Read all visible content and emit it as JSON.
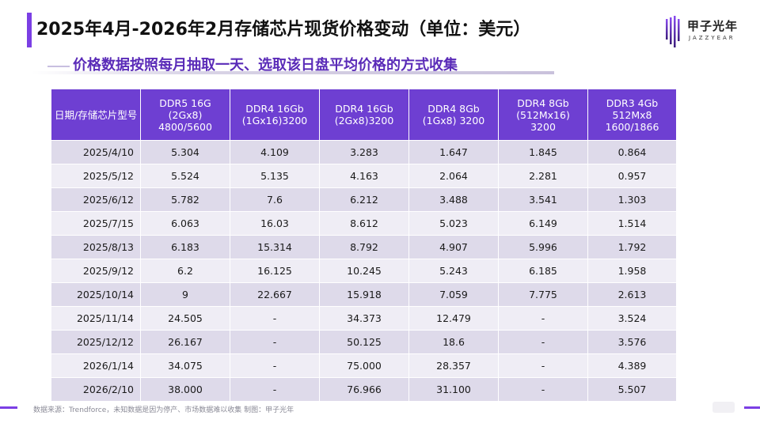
{
  "slide": {
    "title": "2025年4月-2026年2月存储芯片现货价格变动（单位：美元）",
    "subtitle": "价格数据按照每月抽取一天、选取该日盘平均价格的方式收集",
    "source_note": "数据来源：Trendforce，未知数据是因为停产、市场数据难以收集   制图：甲子光年"
  },
  "logo": {
    "name_cn": "甲子光年",
    "name_en": "JAZZYEAR"
  },
  "colors": {
    "accent": "#7b3fe4",
    "header_bg": "#6e3fd2",
    "row_odd": "#dedaea",
    "row_even": "#efedf5"
  },
  "table": {
    "headers": [
      [
        "日期/存储芯片型号"
      ],
      [
        "DDR5 16G",
        "(2Gx8)",
        "4800/5600"
      ],
      [
        "DDR4 16Gb",
        "(1Gx16)3200"
      ],
      [
        "DDR4 16Gb",
        "(2Gx8)3200"
      ],
      [
        "DDR4 8Gb",
        "(1Gx8) 3200"
      ],
      [
        "DDR4 8Gb",
        "(512Mx16)",
        "3200"
      ],
      [
        "DDR3 4Gb",
        "512Mx8",
        "1600/1866"
      ]
    ],
    "rows": [
      [
        "2025/4/10",
        "5.304",
        "4.109",
        "3.283",
        "1.647",
        "1.845",
        "0.864"
      ],
      [
        "2025/5/12",
        "5.524",
        "5.135",
        "4.163",
        "2.064",
        "2.281",
        "0.957"
      ],
      [
        "2025/6/12",
        "5.782",
        "7.6",
        "6.212",
        "3.488",
        "3.541",
        "1.303"
      ],
      [
        "2025/7/15",
        "6.063",
        "16.03",
        "8.612",
        "5.023",
        "6.149",
        "1.514"
      ],
      [
        "2025/8/13",
        "6.183",
        "15.314",
        "8.792",
        "4.907",
        "5.996",
        "1.792"
      ],
      [
        "2025/9/12",
        "6.2",
        "16.125",
        "10.245",
        "5.243",
        "6.185",
        "1.958"
      ],
      [
        "2025/10/14",
        "9",
        "22.667",
        "15.918",
        "7.059",
        "7.775",
        "2.613"
      ],
      [
        "2025/11/14",
        "24.505",
        "-",
        "34.373",
        "12.479",
        "-",
        "3.524"
      ],
      [
        "2025/12/12",
        "26.167",
        "-",
        "50.125",
        "18.6",
        "-",
        "3.576"
      ],
      [
        "2026/1/14",
        "34.075",
        "-",
        "75.000",
        "28.357",
        "-",
        "4.389"
      ],
      [
        "2026/2/10",
        "38.000",
        "-",
        "76.966",
        "31.100",
        "-",
        "5.507"
      ]
    ]
  }
}
